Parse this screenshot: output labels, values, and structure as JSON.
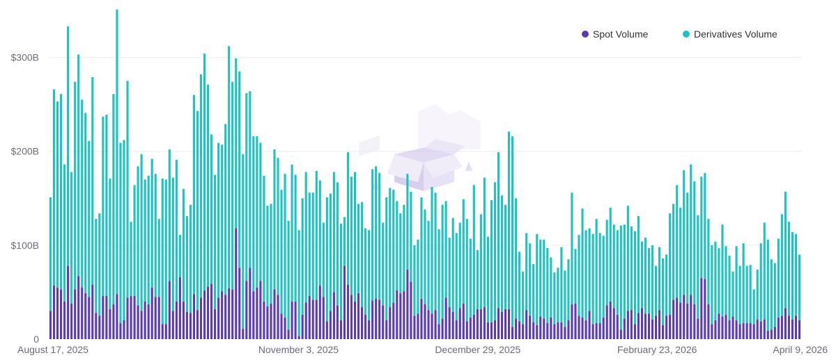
{
  "colors": {
    "spot": "#5b3bb5",
    "derivatives": "#1ec2bf",
    "grid": "#ececf2",
    "axis_text": "#6b6b80",
    "watermark": "#dcd6f0"
  },
  "legend": [
    {
      "key": "spot",
      "label": "Spot Volume"
    },
    {
      "key": "derivatives",
      "label": "Derivatives Volume"
    }
  ],
  "chart_data": {
    "type": "bar",
    "stacked": true,
    "legend_position": "top-right",
    "grid": true,
    "ylim": [
      0,
      350
    ],
    "y_ticks": [
      {
        "value": 0,
        "label": "0"
      },
      {
        "value": 100,
        "label": "$100B"
      },
      {
        "value": 200,
        "label": "$200B"
      },
      {
        "value": 300,
        "label": "$300B"
      }
    ],
    "x_tick_labels": [
      "August 17, 2025",
      "November 3, 2025",
      "December 29, 2025",
      "February 23, 2026",
      "April 9, 2026"
    ],
    "x_start": "2025-08-17",
    "x_end": "2026-04-09",
    "series": [
      {
        "name": "Spot Volume",
        "key": "spot",
        "values": [
          30,
          57,
          55,
          53,
          40,
          78,
          38,
          53,
          67,
          55,
          49,
          45,
          58,
          28,
          25,
          46,
          46,
          32,
          37,
          48,
          17,
          20,
          44,
          46,
          46,
          36,
          30,
          40,
          37,
          55,
          45,
          45,
          16,
          16,
          62,
          30,
          40,
          66,
          40,
          29,
          28,
          48,
          31,
          44,
          52,
          56,
          59,
          32,
          44,
          51,
          47,
          54,
          53,
          118,
          76,
          11,
          62,
          76,
          51,
          55,
          62,
          40,
          35,
          38,
          53,
          47,
          27,
          23,
          10,
          40,
          40,
          3,
          26,
          39,
          46,
          42,
          42,
          57,
          45,
          19,
          30,
          50,
          36,
          20,
          78,
          58,
          47,
          40,
          49,
          34,
          26,
          20,
          41,
          43,
          42,
          36,
          20,
          34,
          39,
          52,
          49,
          51,
          74,
          61,
          25,
          27,
          43,
          37,
          31,
          27,
          31,
          16,
          22,
          44,
          34,
          29,
          20,
          33,
          38,
          19,
          23,
          26,
          32,
          32,
          34,
          18,
          18,
          20,
          33,
          29,
          32,
          32,
          13,
          22,
          19,
          16,
          31,
          25,
          18,
          15,
          24,
          22,
          17,
          23,
          16,
          18,
          18,
          13,
          20,
          37,
          38,
          25,
          23,
          20,
          30,
          16,
          17,
          17,
          23,
          36,
          40,
          33,
          26,
          10,
          22,
          30,
          31,
          16,
          28,
          33,
          27,
          27,
          21,
          25,
          31,
          15,
          25,
          26,
          42,
          44,
          39,
          47,
          38,
          47,
          37,
          22,
          65,
          64,
          37,
          16,
          20,
          27,
          24,
          26,
          20,
          24,
          20,
          16,
          17,
          17,
          17,
          16,
          21,
          19,
          21,
          9,
          10,
          13,
          23,
          25,
          33,
          25,
          21,
          25,
          20
        ],
        "derivatives_note": ""
      },
      {
        "name": "Derivatives Volume",
        "key": "derivatives",
        "values": [
          121,
          209,
          198,
          208,
          146,
          255,
          140,
          221,
          236,
          200,
          192,
          166,
          221,
          100,
          109,
          191,
          193,
          139,
          224,
          303,
          192,
          192,
          231,
          79,
          118,
          148,
          167,
          130,
          137,
          137,
          131,
          83,
          155,
          154,
          140,
          142,
          151,
          45,
          120,
          102,
          115,
          212,
          212,
          238,
          252,
          215,
          159,
          143,
          165,
          156,
          182,
          258,
          221,
          181,
          209,
          186,
          200,
          188,
          165,
          161,
          147,
          134,
          107,
          106,
          149,
          146,
          132,
          153,
          116,
          146,
          135,
          113,
          124,
          139,
          110,
          114,
          137,
          112,
          79,
          132,
          125,
          128,
          131,
          103,
          52,
          141,
          126,
          138,
          95,
          112,
          92,
          96,
          140,
          141,
          135,
          88,
          131,
          127,
          120,
          95,
          85,
          92,
          102,
          96,
          75,
          79,
          108,
          101,
          95,
          135,
          125,
          101,
          121,
          103,
          74,
          100,
          93,
          91,
          111,
          109,
          84,
          138,
          63,
          101,
          138,
          91,
          130,
          147,
          166,
          124,
          111,
          189,
          203,
          128,
          74,
          56,
          82,
          77,
          62,
          97,
          82,
          84,
          80,
          64,
          55,
          58,
          80,
          60,
          65,
          119,
          58,
          86,
          116,
          96,
          88,
          96,
          111,
          96,
          87,
          91,
          100,
          89,
          90,
          111,
          100,
          112,
          89,
          99,
          103,
          71,
          81,
          70,
          79,
          53,
          67,
          71,
          65,
          108,
          102,
          120,
          101,
          133,
          118,
          139,
          131,
          110,
          108,
          113,
          91,
          84,
          84,
          70,
          98,
          73,
          69,
          48,
          79,
          62,
          85,
          61,
          62,
          37,
          53,
          83,
          103,
          97,
          75,
          68,
          84,
          108,
          124,
          100,
          93,
          87,
          70
        ]
      }
    ]
  }
}
